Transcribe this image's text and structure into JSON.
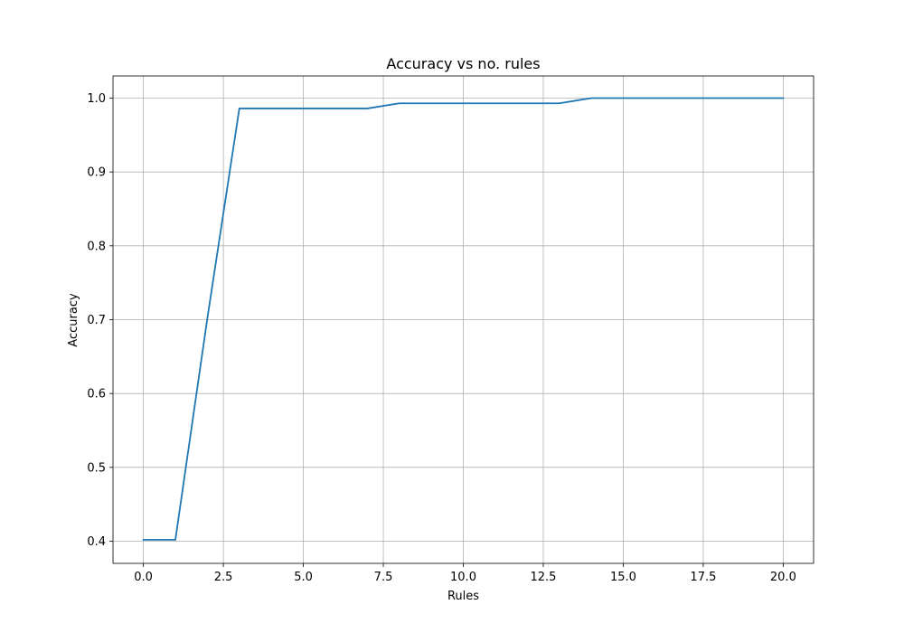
{
  "chart_data": {
    "type": "line",
    "title": "Accuracy vs no. rules",
    "xlabel": "Rules",
    "ylabel": "Accuracy",
    "xlim": [
      -0.95,
      20.95
    ],
    "ylim": [
      0.37,
      1.03
    ],
    "xticks": [
      0.0,
      2.5,
      5.0,
      7.5,
      10.0,
      12.5,
      15.0,
      17.5,
      20.0
    ],
    "xtick_labels": [
      "0.0",
      "2.5",
      "5.0",
      "7.5",
      "10.0",
      "12.5",
      "15.0",
      "17.5",
      "20.0"
    ],
    "yticks": [
      0.4,
      0.5,
      0.6,
      0.7,
      0.8,
      0.9,
      1.0
    ],
    "ytick_labels": [
      "0.4",
      "0.5",
      "0.6",
      "0.7",
      "0.8",
      "0.9",
      "1.0"
    ],
    "grid": true,
    "series": [
      {
        "x": [
          0,
          1,
          2,
          3,
          4,
          5,
          6,
          7,
          8,
          9,
          10,
          11,
          12,
          13,
          14,
          15,
          16,
          17,
          18,
          19,
          20
        ],
        "y": [
          0.402,
          0.402,
          0.702,
          0.986,
          0.986,
          0.986,
          0.986,
          0.986,
          0.993,
          0.993,
          0.993,
          0.993,
          0.993,
          0.993,
          1.0,
          1.0,
          1.0,
          1.0,
          1.0,
          1.0,
          1.0
        ],
        "color": "#1f77b4"
      }
    ]
  }
}
